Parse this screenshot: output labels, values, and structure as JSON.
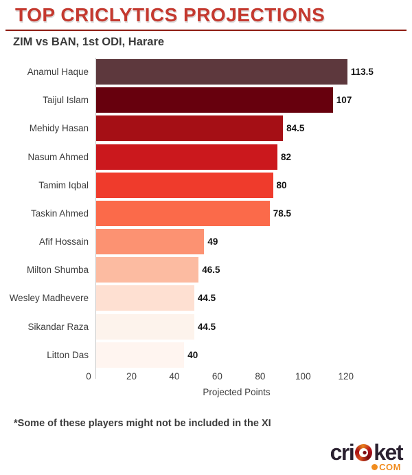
{
  "header": {
    "title": "TOP CRICLYTICS PROJECTIONS",
    "subtitle": "ZIM vs BAN, 1st ODI, Harare"
  },
  "chart_data": {
    "type": "bar",
    "orientation": "horizontal",
    "title": "TOP CRICLYTICS PROJECTIONS",
    "subtitle": "ZIM vs BAN, 1st ODI, Harare",
    "categories": [
      "Anamul Haque",
      "Taijul Islam",
      "Mehidy Hasan",
      "Nasum Ahmed",
      "Tamim Iqbal",
      "Taskin Ahmed",
      "Afif Hossain",
      "Milton Shumba",
      "Wesley Madhevere",
      "Sikandar Raza",
      "Litton Das"
    ],
    "values": [
      113.5,
      107,
      84.5,
      82,
      80,
      78.5,
      49,
      46.5,
      44.5,
      44.5,
      40
    ],
    "value_labels": [
      "113.5",
      "107",
      "84.5",
      "82",
      "80",
      "78.5",
      "49",
      "46.5",
      "44.5",
      "44.5",
      "40"
    ],
    "bar_colors": [
      "#5d383d",
      "#67000d",
      "#a50f15",
      "#cb181d",
      "#ef3b2c",
      "#fb6a4a",
      "#fc9272",
      "#fcbba1",
      "#fee0d2",
      "#fdf3ec",
      "#fff5f0"
    ],
    "xlabel": "Projected Points",
    "ylabel": "",
    "x_ticks": [
      0,
      20,
      40,
      60,
      80,
      100,
      120
    ],
    "xlim": [
      0,
      138
    ],
    "grid": false,
    "legend": false
  },
  "footer": {
    "note": "*Some of these players might not be included in the XI",
    "logo": {
      "prefix": "cri",
      "suffix": "ket",
      "tld": "COM"
    }
  },
  "colors": {
    "title_red": "#c4392f",
    "divider_red": "#8e1c12",
    "text_gray": "#3b3b3b",
    "value_black": "#141414",
    "axis_line_gray": "#c9c9c9",
    "logo_dark": "#2a2130",
    "logo_orange": "#f08c1e"
  }
}
